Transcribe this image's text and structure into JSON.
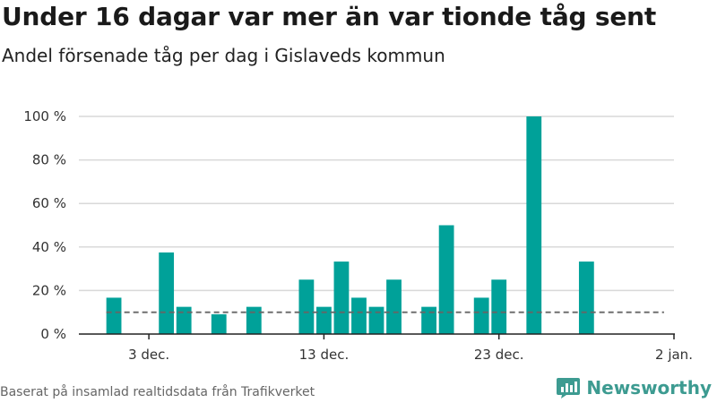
{
  "header": {
    "title": "Under 16 dagar var mer än var tionde tåg sent",
    "subtitle": "Andel försenade tåg per dag i Gislaveds kommun"
  },
  "footer": {
    "source": "Baserat på insamlad realtidsdata från Trafikverket",
    "brand": "Newsworthy"
  },
  "colors": {
    "bar": "#00a199",
    "grid": "#d9d9d9",
    "reference_line": "#666666",
    "brand": "#3d9b91"
  },
  "chart_data": {
    "type": "bar",
    "ylim": [
      0,
      100
    ],
    "y_ticks": [
      0,
      20,
      40,
      60,
      80,
      100
    ],
    "y_tick_labels": [
      "0 %",
      "20 %",
      "40 %",
      "60 %",
      "80 %",
      "100 %"
    ],
    "x_ticks": [
      {
        "date": "2023-12-03",
        "label": "3 dec."
      },
      {
        "date": "2023-12-13",
        "label": "13 dec."
      },
      {
        "date": "2023-12-23",
        "label": "23 dec."
      },
      {
        "date": "2024-01-02",
        "label": "2 jan."
      }
    ],
    "x_range": [
      "2023-11-29",
      "2024-01-02"
    ],
    "grid": true,
    "reference_line": {
      "value": 10,
      "style": "dashed",
      "from": "2023-12-01",
      "to": "2024-01-01"
    },
    "series": [
      {
        "values": [
          {
            "date": "2023-12-01",
            "value": 16.7
          },
          {
            "date": "2023-12-04",
            "value": 37.5
          },
          {
            "date": "2023-12-05",
            "value": 12.5
          },
          {
            "date": "2023-12-07",
            "value": 9.1
          },
          {
            "date": "2023-12-09",
            "value": 12.5
          },
          {
            "date": "2023-12-12",
            "value": 25
          },
          {
            "date": "2023-12-13",
            "value": 12.5
          },
          {
            "date": "2023-12-14",
            "value": 33.3
          },
          {
            "date": "2023-12-15",
            "value": 16.7
          },
          {
            "date": "2023-12-16",
            "value": 12.5
          },
          {
            "date": "2023-12-17",
            "value": 25
          },
          {
            "date": "2023-12-19",
            "value": 12.5
          },
          {
            "date": "2023-12-20",
            "value": 50
          },
          {
            "date": "2023-12-22",
            "value": 16.7
          },
          {
            "date": "2023-12-23",
            "value": 25
          },
          {
            "date": "2023-12-25",
            "value": 100
          },
          {
            "date": "2023-12-28",
            "value": 33.3
          }
        ]
      }
    ]
  }
}
